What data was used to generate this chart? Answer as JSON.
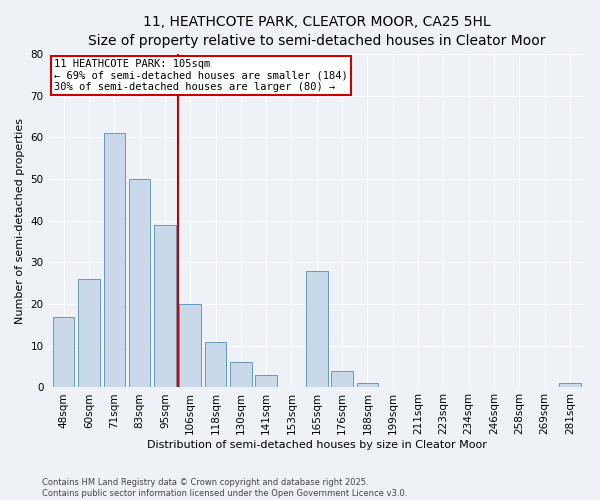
{
  "title": "11, HEATHCOTE PARK, CLEATOR MOOR, CA25 5HL",
  "subtitle": "Size of property relative to semi-detached houses in Cleator Moor",
  "xlabel": "Distribution of semi-detached houses by size in Cleator Moor",
  "ylabel": "Number of semi-detached properties",
  "bar_labels": [
    "48sqm",
    "60sqm",
    "71sqm",
    "83sqm",
    "95sqm",
    "106sqm",
    "118sqm",
    "130sqm",
    "141sqm",
    "153sqm",
    "165sqm",
    "176sqm",
    "188sqm",
    "199sqm",
    "211sqm",
    "223sqm",
    "234sqm",
    "246sqm",
    "258sqm",
    "269sqm",
    "281sqm"
  ],
  "bar_values": [
    17,
    26,
    61,
    50,
    39,
    20,
    11,
    6,
    3,
    0,
    28,
    4,
    1,
    0,
    0,
    0,
    0,
    0,
    0,
    0,
    1
  ],
  "bar_color": "#c9d9e9",
  "bar_edge_color": "#6699bb",
  "ylim": [
    0,
    80
  ],
  "yticks": [
    0,
    10,
    20,
    30,
    40,
    50,
    60,
    70,
    80
  ],
  "property_line_label": "11 HEATHCOTE PARK: 105sqm",
  "annotation_left": "← 69% of semi-detached houses are smaller (184)",
  "annotation_right": "30% of semi-detached houses are larger (80) →",
  "footer1": "Contains HM Land Registry data © Crown copyright and database right 2025.",
  "footer2": "Contains public sector information licensed under the Open Government Licence v3.0.",
  "bg_color": "#eef2f7",
  "plot_bg_color": "#eef2f7",
  "grid_color": "#ffffff",
  "red_line_color": "#cc0000",
  "box_edge_color": "#cc0000",
  "title_fontsize": 10,
  "subtitle_fontsize": 8.5,
  "xlabel_fontsize": 8,
  "ylabel_fontsize": 8,
  "tick_fontsize": 7.5,
  "annotation_fontsize": 7.5,
  "footer_fontsize": 6
}
